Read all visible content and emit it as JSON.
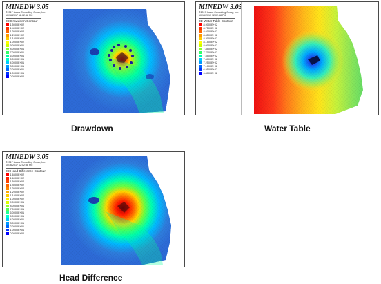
{
  "panels": [
    {
      "id": "drawdown",
      "app_title": "MINEDW 3.05",
      "copyright": "©2017 Itasca Consulting Group, Inc.",
      "timestamp": "10/16/2017 12:02:58 PM",
      "contour_title": "2D Drawdown Contour",
      "legend_values": [
        "1.5000E+02",
        "1.4000E+02",
        "1.3000E+02",
        "1.2000E+02",
        "1.1000E+02",
        "1.0000E+02",
        "9.0000E+01",
        "8.0000E+01",
        "7.0000E+01",
        "6.0000E+01",
        "5.0000E+01",
        "4.0000E+01",
        "3.0000E+01",
        "2.0000E+01",
        "1.0000E+01",
        "0.0000E+00"
      ],
      "legend_colors": [
        "#ff0000",
        "#ff3300",
        "#ff6600",
        "#ff9900",
        "#ffcc00",
        "#ffff00",
        "#ccff00",
        "#88ff33",
        "#33ff66",
        "#00ff99",
        "#00ffcc",
        "#00ccff",
        "#0099ff",
        "#0066ff",
        "#0033ff",
        "#0000ff"
      ],
      "caption": "Drawdown"
    },
    {
      "id": "water-table",
      "app_title": "MINEDW 3.05",
      "copyright": "©2017 Itasca Consulting Group, Inc.",
      "timestamp": "10/16/2017 12:02:58 PM",
      "contour_title": "2D Water Table Contour",
      "legend_values": [
        "8.9000E+02",
        "8.7500E+02",
        "8.6000E+02",
        "8.4500E+02",
        "8.3000E+02",
        "8.1500E+02",
        "8.0000E+02",
        "7.8500E+02",
        "7.7000E+02",
        "7.5500E+02",
        "7.4000E+02",
        "7.2500E+02",
        "7.1000E+02",
        "6.9500E+02",
        "6.8000E+02"
      ],
      "legend_colors": [
        "#ff0000",
        "#ff3300",
        "#ff6600",
        "#ff9900",
        "#ffcc00",
        "#ffff00",
        "#ccff00",
        "#88ff33",
        "#33ff66",
        "#00ffaa",
        "#00ccff",
        "#0099ff",
        "#0066ff",
        "#0033ff",
        "#0000ff"
      ],
      "caption": "Water Table"
    },
    {
      "id": "head-difference",
      "app_title": "MINEDW 3.05",
      "copyright": "©2017 Itasca Consulting Group, Inc.",
      "timestamp": "10/16/2017 12:02:58 PM",
      "contour_title": "2D Head Difference Contour",
      "legend_values": [
        "1.6500E+02",
        "1.6000E+02",
        "1.5000E+02",
        "1.4000E+02",
        "1.3000E+02",
        "1.2000E+02",
        "1.1000E+02",
        "1.0000E+02",
        "9.0000E+01",
        "8.0000E+01",
        "7.0000E+01",
        "6.0000E+01",
        "5.0000E+01",
        "4.0000E+01",
        "3.0000E+01",
        "2.0000E+01",
        "1.0000E+01",
        "0.0000E+00"
      ],
      "legend_colors": [
        "#ff0000",
        "#ff2200",
        "#ff4400",
        "#ff6600",
        "#ff8800",
        "#ffaa00",
        "#ffcc00",
        "#ffee00",
        "#ddff00",
        "#99ff22",
        "#55ff55",
        "#22ff99",
        "#00ffcc",
        "#00ccff",
        "#0099ff",
        "#0066ff",
        "#0033ff",
        "#0000ff"
      ],
      "caption": "Head Difference"
    }
  ]
}
